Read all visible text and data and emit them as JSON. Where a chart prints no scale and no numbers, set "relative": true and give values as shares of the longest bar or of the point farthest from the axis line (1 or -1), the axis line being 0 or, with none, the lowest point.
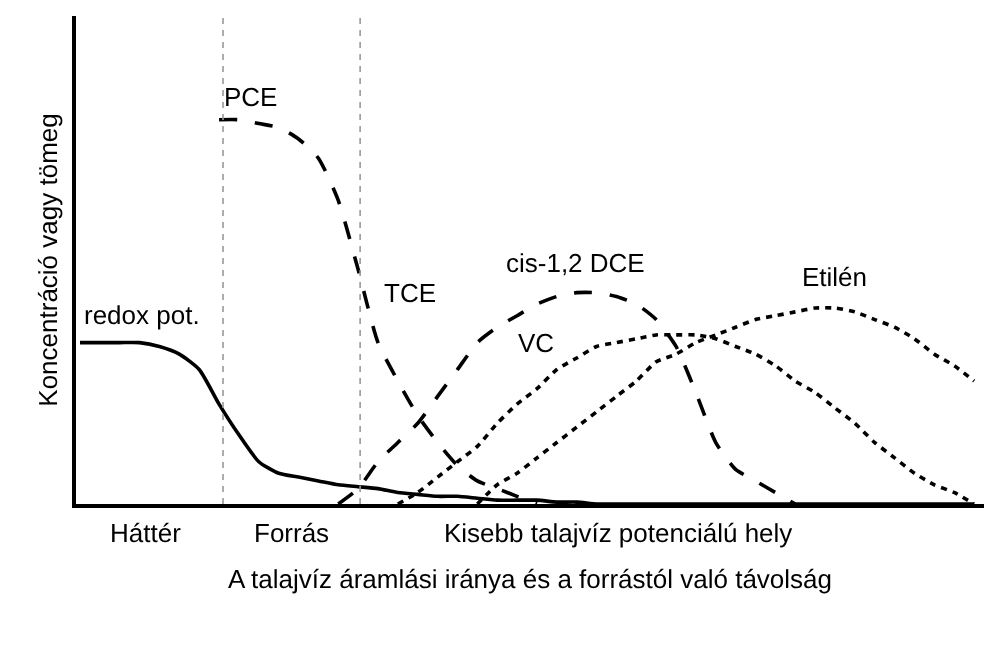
{
  "chart_data": {
    "type": "line",
    "relative": true,
    "ylabel": "Koncentráció vagy tömeg",
    "xlabel": "A talajvíz áramlási iránya és a forrástól való távolság",
    "categories": [
      null,
      null,
      null,
      null,
      null,
      null,
      null,
      null,
      null,
      null,
      null,
      null,
      null,
      null,
      null,
      null,
      null,
      null,
      null,
      null,
      null,
      null,
      null,
      null,
      null,
      null,
      null,
      null,
      null,
      null,
      null,
      null,
      null,
      null,
      null,
      null,
      null,
      null,
      null,
      null,
      null,
      null,
      null,
      null,
      null,
      null
    ],
    "series": [
      {
        "name": "redox pot.",
        "color": "#000000",
        "line_style": "solid",
        "values": [
          0.42,
          0.42,
          0.42,
          0.42,
          0.41,
          0.39,
          0.35,
          0.26,
          0.18,
          0.11,
          0.08,
          0.07,
          0.06,
          0.05,
          0.045,
          0.04,
          0.03,
          0.025,
          0.02,
          0.02,
          0.015,
          0.01,
          0.01,
          0.01,
          0.005,
          0.005,
          0,
          0,
          0,
          0,
          0,
          0,
          0,
          0,
          0,
          0,
          0,
          0,
          0,
          0,
          0,
          0,
          0,
          0,
          0,
          0
        ]
      },
      {
        "name": "PCE",
        "color": "#000000",
        "line_style": "dashed",
        "values": [
          null,
          null,
          null,
          null,
          null,
          null,
          null,
          1.0,
          1.0,
          0.99,
          0.98,
          0.95,
          0.9,
          0.79,
          0.61,
          0.42,
          0.32,
          0.23,
          0.16,
          0.1,
          0.06,
          0.04,
          0.02,
          0,
          null,
          null,
          null,
          null,
          null,
          null,
          null,
          null,
          null,
          null,
          null,
          null,
          null,
          null,
          null,
          null,
          null,
          null,
          null,
          null,
          null,
          null
        ]
      },
      {
        "name": "cis-1,2 DCE",
        "color": "#000000",
        "line_style": "dashed",
        "values": [
          null,
          null,
          null,
          null,
          null,
          null,
          null,
          null,
          null,
          null,
          null,
          null,
          null,
          0,
          0.04,
          0.11,
          0.16,
          0.21,
          0.28,
          0.35,
          0.42,
          0.46,
          0.49,
          0.52,
          0.54,
          0.55,
          0.55,
          0.54,
          0.52,
          0.48,
          0.41,
          0.29,
          0.16,
          0.09,
          0.06,
          0.03,
          0,
          null,
          null,
          null,
          null,
          null,
          null,
          null,
          null,
          null
        ]
      },
      {
        "name": "VC",
        "color": "#000000",
        "line_style": "dotted",
        "values": [
          null,
          null,
          null,
          null,
          null,
          null,
          null,
          null,
          null,
          null,
          null,
          null,
          null,
          null,
          null,
          null,
          0,
          0.03,
          0.07,
          0.11,
          0.15,
          0.21,
          0.26,
          0.3,
          0.35,
          0.38,
          0.41,
          0.42,
          0.43,
          0.44,
          0.44,
          0.44,
          0.43,
          0.41,
          0.39,
          0.36,
          0.32,
          0.29,
          0.25,
          0.21,
          0.16,
          0.12,
          0.08,
          0.05,
          0.03,
          0
        ]
      },
      {
        "name": "Etilén",
        "color": "#000000",
        "line_style": "dotted",
        "values": [
          null,
          null,
          null,
          null,
          null,
          null,
          null,
          null,
          null,
          null,
          null,
          null,
          null,
          null,
          null,
          null,
          null,
          null,
          null,
          null,
          0,
          0.05,
          0.08,
          0.12,
          0.16,
          0.2,
          0.24,
          0.28,
          0.32,
          0.37,
          0.39,
          0.42,
          0.44,
          0.46,
          0.48,
          0.49,
          0.5,
          0.51,
          0.51,
          0.5,
          0.48,
          0.46,
          0.43,
          0.39,
          0.36,
          0.32
        ]
      }
    ],
    "annotations": [
      "TCE",
      "Háttér",
      "Forrás",
      "Kisebb talajvíz potenciálú hely"
    ],
    "legend": false,
    "tick_labels": false
  }
}
